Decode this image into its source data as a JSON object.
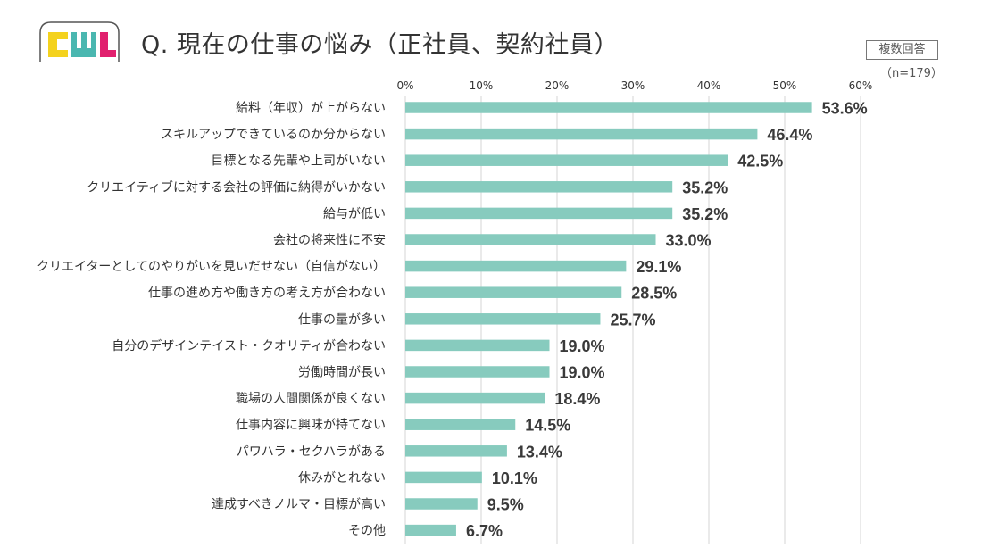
{
  "header": {
    "title": "Q. 現在の仕事の悩み（正社員、契約社員）",
    "badge": "複数回答",
    "sample": "（n=179）"
  },
  "colors": {
    "bar": "#87cbbe",
    "grid": "#d6d6d6",
    "logo_yellow": "#f4d21e",
    "logo_teal": "#4ab7b0",
    "logo_pink": "#e1206e"
  },
  "chart_data": {
    "type": "bar",
    "orientation": "horizontal",
    "title": "Q. 現在の仕事の悩み（正社員、契約社員）",
    "xlim": [
      0,
      60
    ],
    "ticks": [
      0,
      10,
      20,
      30,
      40,
      50,
      60
    ],
    "tick_labels": [
      "0%",
      "10%",
      "20%",
      "30%",
      "40%",
      "50%",
      "60%"
    ],
    "categories": [
      "給料（年収）が上がらない",
      "スキルアップできているのか分からない",
      "目標となる先輩や上司がいない",
      "クリエイティブに対する会社の評価に納得がいかない",
      "給与が低い",
      "会社の将来性に不安",
      "クリエイターとしてのやりがいを見いだせない（自信がない）",
      "仕事の進め方や働き方の考え方が合わない",
      "仕事の量が多い",
      "自分のデザインテイスト・クオリティが合わない",
      "労働時間が長い",
      "職場の人間関係が良くない",
      "仕事内容に興味が持てない",
      "パワハラ・セクハラがある",
      "休みがとれない",
      "達成すべきノルマ・目標が高い",
      "その他"
    ],
    "values": [
      53.6,
      46.4,
      42.5,
      35.2,
      35.2,
      33.0,
      29.1,
      28.5,
      25.7,
      19.0,
      19.0,
      18.4,
      14.5,
      13.4,
      10.1,
      9.5,
      6.7
    ],
    "value_labels": [
      "53.6%",
      "46.4%",
      "42.5%",
      "35.2%",
      "35.2%",
      "33.0%",
      "29.1%",
      "28.5%",
      "25.7%",
      "19.0%",
      "19.0%",
      "18.4%",
      "14.5%",
      "13.4%",
      "10.1%",
      "9.5%",
      "6.7%"
    ]
  }
}
